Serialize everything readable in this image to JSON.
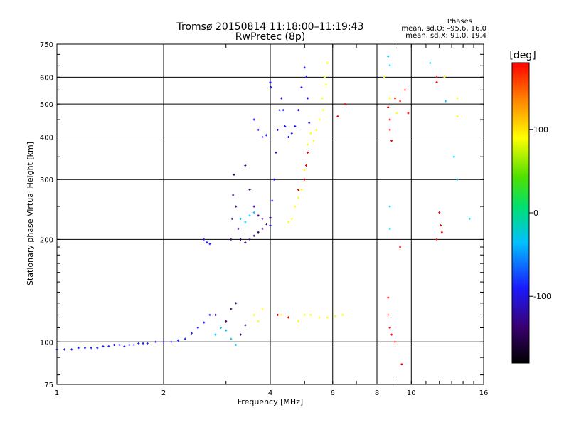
{
  "chart_data": {
    "type": "scatter",
    "title": "Tromsø 20150814 11:18:00–11:19:43",
    "subtitle": "RwPretec (8p)",
    "xlabel": "Frequency [MHz]",
    "ylabel": "Stationary phase Virtual Height [km]",
    "x_scale": "log",
    "y_scale": "log",
    "xlim": [
      1,
      16
    ],
    "ylim": [
      75,
      750
    ],
    "x_ticks": [
      1,
      2,
      4,
      6,
      8,
      10,
      16
    ],
    "y_ticks": [
      75,
      100,
      200,
      300,
      400,
      500,
      600,
      750
    ],
    "grid": true,
    "stats": {
      "heading": "Phases",
      "line_o": "mean, sd,O: –95.6, 16.0",
      "line_x": "mean, sd,X:  91.0, 19.4"
    },
    "colorbar": {
      "label": "[deg]",
      "range": [
        -180,
        180
      ],
      "ticks": [
        100,
        0,
        -100
      ],
      "colors": [
        "#000000",
        "#3a0070",
        "#1a1aff",
        "#00c0ff",
        "#00e070",
        "#50e000",
        "#ffff00",
        "#ff8000",
        "#ff0000"
      ]
    },
    "series": [
      {
        "phase": -100,
        "points": [
          [
            1.0,
            95
          ],
          [
            1.05,
            95
          ],
          [
            1.1,
            95
          ],
          [
            1.15,
            96
          ],
          [
            1.2,
            96
          ],
          [
            1.25,
            96
          ],
          [
            1.3,
            96
          ],
          [
            1.35,
            97
          ],
          [
            1.4,
            97
          ],
          [
            1.45,
            98
          ],
          [
            1.5,
            98
          ],
          [
            1.55,
            97
          ],
          [
            1.6,
            98
          ],
          [
            1.65,
            98
          ],
          [
            1.7,
            99
          ],
          [
            1.75,
            99
          ],
          [
            1.8,
            99
          ],
          [
            1.9,
            100
          ],
          [
            2.0,
            100
          ],
          [
            2.1,
            100
          ],
          [
            2.2,
            101
          ],
          [
            2.3,
            102
          ],
          [
            2.4,
            106
          ],
          [
            2.5,
            110
          ],
          [
            2.6,
            114
          ],
          [
            2.7,
            120
          ],
          [
            2.6,
            200
          ],
          [
            2.65,
            196
          ],
          [
            2.7,
            194
          ],
          [
            4.0,
            220
          ],
          [
            4.05,
            260
          ],
          [
            4.1,
            300
          ],
          [
            4.15,
            360
          ],
          [
            4.2,
            420
          ],
          [
            4.25,
            480
          ],
          [
            4.3,
            520
          ],
          [
            4.35,
            480
          ],
          [
            4.4,
            430
          ],
          [
            4.5,
            400
          ],
          [
            4.6,
            410
          ],
          [
            4.7,
            430
          ],
          [
            4.8,
            480
          ],
          [
            4.9,
            560
          ],
          [
            5.0,
            640
          ],
          [
            5.05,
            600
          ],
          [
            5.1,
            520
          ],
          [
            5.15,
            440
          ],
          [
            3.6,
            450
          ],
          [
            3.7,
            420
          ],
          [
            3.8,
            400
          ],
          [
            3.9,
            405
          ],
          [
            4.0,
            580
          ],
          [
            4.02,
            560
          ]
        ]
      },
      {
        "phase": -140,
        "points": [
          [
            3.1,
            200
          ],
          [
            3.12,
            230
          ],
          [
            3.14,
            270
          ],
          [
            3.16,
            310
          ],
          [
            3.2,
            250
          ],
          [
            3.25,
            215
          ],
          [
            3.3,
            200
          ],
          [
            3.4,
            196
          ],
          [
            3.5,
            200
          ],
          [
            3.6,
            205
          ],
          [
            3.7,
            210
          ],
          [
            3.8,
            215
          ],
          [
            3.9,
            222
          ],
          [
            4.0,
            232
          ],
          [
            3.4,
            330
          ],
          [
            3.5,
            280
          ],
          [
            3.6,
            250
          ],
          [
            3.7,
            235
          ],
          [
            3.8,
            230
          ],
          [
            2.8,
            120
          ],
          [
            3.0,
            115
          ],
          [
            3.1,
            125
          ],
          [
            3.2,
            130
          ],
          [
            3.3,
            105
          ],
          [
            3.4,
            112
          ]
        ]
      },
      {
        "phase": -40,
        "points": [
          [
            3.3,
            230
          ],
          [
            3.4,
            225
          ],
          [
            3.5,
            235
          ],
          [
            3.6,
            240
          ],
          [
            2.8,
            105
          ],
          [
            2.9,
            110
          ],
          [
            3.0,
            108
          ],
          [
            3.1,
            102
          ],
          [
            3.2,
            98
          ],
          [
            8.6,
            690
          ],
          [
            8.7,
            650
          ],
          [
            8.7,
            250
          ],
          [
            8.7,
            215
          ],
          [
            11.3,
            660
          ],
          [
            12.5,
            510
          ],
          [
            13.2,
            350
          ],
          [
            13.5,
            300
          ],
          [
            14.6,
            230
          ]
        ]
      },
      {
        "phase": 100,
        "points": [
          [
            4.5,
            225
          ],
          [
            4.6,
            230
          ],
          [
            4.7,
            250
          ],
          [
            4.8,
            265
          ],
          [
            4.9,
            280
          ],
          [
            5.0,
            320
          ],
          [
            5.1,
            380
          ],
          [
            5.2,
            410
          ],
          [
            5.3,
            390
          ],
          [
            5.4,
            420
          ],
          [
            5.5,
            450
          ],
          [
            5.6,
            520
          ],
          [
            5.7,
            600
          ],
          [
            5.8,
            660
          ],
          [
            5.75,
            570
          ],
          [
            5.65,
            480
          ],
          [
            3.6,
            120
          ],
          [
            3.7,
            115
          ],
          [
            3.8,
            125
          ],
          [
            4.3,
            120
          ],
          [
            4.5,
            118
          ],
          [
            4.8,
            115
          ],
          [
            5.0,
            120
          ],
          [
            5.2,
            120
          ],
          [
            5.5,
            118
          ],
          [
            5.8,
            118
          ],
          [
            6.1,
            119
          ],
          [
            6.4,
            120
          ],
          [
            8.4,
            600
          ],
          [
            8.7,
            520
          ],
          [
            9.1,
            470
          ],
          [
            12.4,
            600
          ],
          [
            13.5,
            520
          ],
          [
            13.5,
            460
          ]
        ]
      },
      {
        "phase": 160,
        "points": [
          [
            5.0,
            300
          ],
          [
            5.05,
            330
          ],
          [
            5.1,
            360
          ],
          [
            4.8,
            280
          ],
          [
            4.2,
            120
          ],
          [
            4.5,
            118
          ],
          [
            6.2,
            460
          ],
          [
            6.5,
            500
          ],
          [
            8.6,
            490
          ],
          [
            8.7,
            450
          ],
          [
            8.7,
            420
          ],
          [
            8.8,
            390
          ],
          [
            9.0,
            520
          ],
          [
            9.3,
            510
          ],
          [
            9.6,
            550
          ],
          [
            9.8,
            470
          ],
          [
            11.8,
            600
          ],
          [
            11.8,
            580
          ],
          [
            12.0,
            240
          ],
          [
            12.1,
            220
          ],
          [
            12.2,
            210
          ],
          [
            11.8,
            200
          ],
          [
            8.6,
            135
          ],
          [
            8.6,
            120
          ],
          [
            8.7,
            110
          ],
          [
            8.8,
            105
          ],
          [
            9.0,
            100
          ],
          [
            9.3,
            190
          ],
          [
            9.4,
            86
          ]
        ]
      }
    ]
  }
}
